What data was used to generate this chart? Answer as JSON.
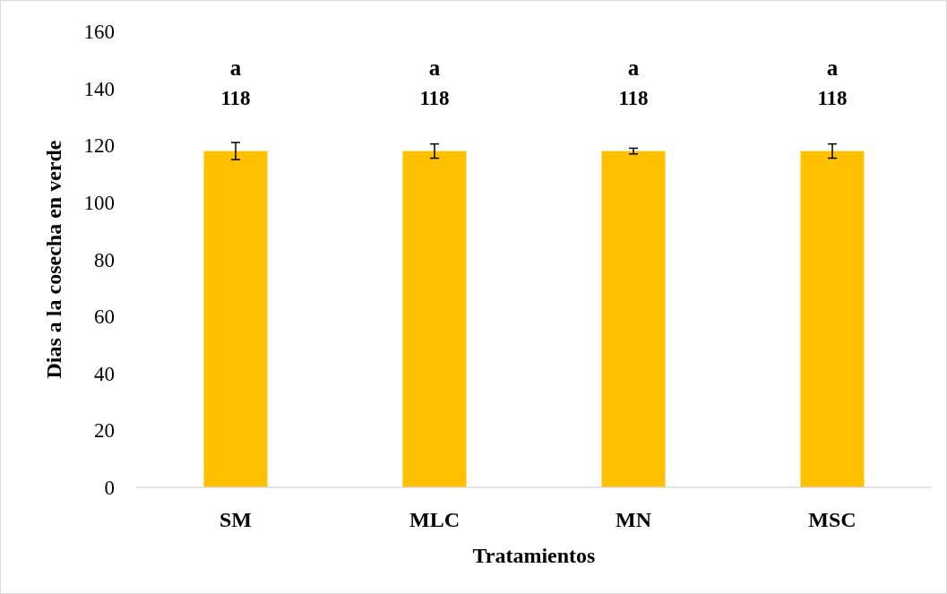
{
  "chart_data": {
    "type": "bar",
    "xlabel": "Tratamientos",
    "ylabel": "Dias a la cosecha en verde",
    "categories": [
      "SM",
      "MLC",
      "MN",
      "MSC"
    ],
    "values": [
      118,
      118,
      118,
      118
    ],
    "errors": [
      3,
      2.5,
      1,
      2.5
    ],
    "color": "#ffc000",
    "ylim": [
      0,
      160
    ],
    "yticks": [
      0,
      20,
      40,
      60,
      80,
      100,
      120,
      140,
      160
    ],
    "grid": false,
    "data_labels": true,
    "annotations": [
      "a",
      "a",
      "a",
      "a"
    ]
  }
}
